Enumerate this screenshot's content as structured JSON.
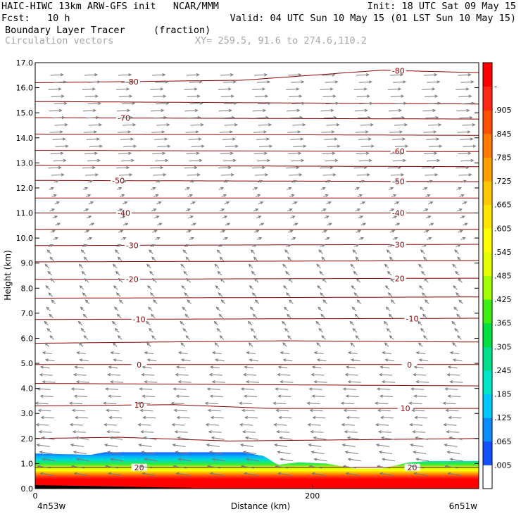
{
  "header": {
    "line1_left": "HAIC-HIWC 13km ARW-GFS init   NCAR/MMM",
    "line1_right": "Init: 18 UTC Sat 09 May 15",
    "line2_left": "Fcst:   10 h",
    "line2_right": "Valid: 04 UTC Sun 10 May 15 (01 LST Sun 10 May 15)",
    "field_name": "Boundary Layer Tracer",
    "field_units": "(fraction)",
    "vector_label": "Circulation vectors",
    "xy_label": "XY= 259.5, 91.6 to 274.6,110.2"
  },
  "chart_data": {
    "type": "heatmap",
    "title": "Boundary Layer Tracer",
    "xlabel": "Distance (km)",
    "ylabel": "Height (km)",
    "xlim": [
      0,
      320
    ],
    "ylim": [
      0,
      17
    ],
    "x_ticks": [
      0,
      200
    ],
    "x_tick_labels": [
      "0",
      "200"
    ],
    "x_end_labels": [
      "4n53w",
      "6n51w"
    ],
    "y_ticks": [
      0,
      1,
      2,
      3,
      4,
      5,
      6,
      7,
      8,
      9,
      10,
      11,
      12,
      13,
      14,
      15,
      16,
      17
    ],
    "y_tick_labels": [
      "0.0",
      "1.0",
      "2.0",
      "3.0",
      "4.0",
      "5.0",
      "6.0",
      "7.0",
      "8.0",
      "9.0",
      "10.0",
      "11.0",
      "12.0",
      "13.0",
      "14.0",
      "15.0",
      "16.0",
      "17.0"
    ],
    "colorbar": {
      "labels": [
        ".005",
        ".065",
        ".125",
        ".185",
        ".245",
        ".305",
        ".365",
        ".425",
        ".485",
        ".545",
        ".605",
        ".665",
        ".725",
        ".785",
        ".845",
        ".905",
        "-"
      ],
      "colors": [
        "#ffffff",
        "#1450ff",
        "#0a8cff",
        "#00c8ff",
        "#00e6c8",
        "#00e08c",
        "#00e040",
        "#3cf014",
        "#a0ff00",
        "#e6ff00",
        "#ffff00",
        "#ffe600",
        "#ffc800",
        "#ffa000",
        "#ff7800",
        "#ff5000",
        "#ff2814",
        "#ff0000"
      ]
    },
    "tracer_top_km": [
      [
        0,
        1.4
      ],
      [
        40,
        1.35
      ],
      [
        50,
        1.45
      ],
      [
        150,
        1.45
      ],
      [
        165,
        1.3
      ],
      [
        175,
        0.95
      ],
      [
        190,
        1.05
      ],
      [
        210,
        1.0
      ],
      [
        230,
        0.8
      ],
      [
        250,
        0.8
      ],
      [
        270,
        1.05
      ],
      [
        285,
        1.1
      ],
      [
        320,
        1.1
      ]
    ],
    "temperature_contours_C": [
      {
        "value": -80,
        "label": "-80",
        "km": [
          [
            0,
            16.2
          ],
          [
            150,
            16.3
          ],
          [
            250,
            16.7
          ],
          [
            320,
            16.6
          ]
        ],
        "label_x": [
          70,
          262
        ]
      },
      {
        "value": -75,
        "km": [
          [
            0,
            15.45
          ],
          [
            320,
            15.35
          ]
        ]
      },
      {
        "value": -70,
        "label": "-70",
        "km": [
          [
            0,
            14.8
          ],
          [
            320,
            14.75
          ]
        ],
        "label_x": [
          64
        ]
      },
      {
        "value": -65,
        "km": [
          [
            0,
            14.15
          ],
          [
            320,
            14.1
          ]
        ]
      },
      {
        "value": -60,
        "label": "-60",
        "km": [
          [
            0,
            13.5
          ],
          [
            320,
            13.45
          ]
        ],
        "label_x": [
          262
        ]
      },
      {
        "value": -55,
        "km": [
          [
            0,
            12.9
          ],
          [
            320,
            12.85
          ]
        ]
      },
      {
        "value": -50,
        "label": "-50",
        "km": [
          [
            0,
            12.3
          ],
          [
            320,
            12.25
          ]
        ],
        "label_x": [
          60,
          262
        ]
      },
      {
        "value": -45,
        "km": [
          [
            0,
            11.6
          ],
          [
            320,
            11.6
          ]
        ]
      },
      {
        "value": -40,
        "label": "-40",
        "km": [
          [
            0,
            11.0
          ],
          [
            320,
            11.0
          ]
        ],
        "label_x": [
          64,
          262
        ]
      },
      {
        "value": -35,
        "km": [
          [
            0,
            10.35
          ],
          [
            320,
            10.35
          ]
        ]
      },
      {
        "value": -30,
        "label": "-30",
        "km": [
          [
            0,
            9.7
          ],
          [
            320,
            9.75
          ]
        ],
        "label_x": [
          70,
          262
        ]
      },
      {
        "value": -25,
        "km": [
          [
            0,
            9.05
          ],
          [
            320,
            9.1
          ]
        ]
      },
      {
        "value": -20,
        "label": "-20",
        "km": [
          [
            0,
            8.35
          ],
          [
            320,
            8.4
          ]
        ],
        "label_x": [
          70,
          262
        ]
      },
      {
        "value": -15,
        "km": [
          [
            0,
            7.6
          ],
          [
            320,
            7.65
          ]
        ]
      },
      {
        "value": -10,
        "label": "-10",
        "km": [
          [
            0,
            6.75
          ],
          [
            320,
            6.8
          ]
        ],
        "label_x": [
          75,
          272
        ]
      },
      {
        "value": -5,
        "km": [
          [
            0,
            5.8
          ],
          [
            180,
            5.9
          ],
          [
            320,
            5.85
          ]
        ]
      },
      {
        "value": 0,
        "label": "0",
        "km": [
          [
            0,
            4.95
          ],
          [
            320,
            4.95
          ]
        ],
        "label_x": [
          75,
          270
        ]
      },
      {
        "value": 5,
        "km": [
          [
            0,
            4.2
          ],
          [
            320,
            4.1
          ]
        ]
      },
      {
        "value": 10,
        "label": "10",
        "km": [
          [
            0,
            3.3
          ],
          [
            100,
            3.35
          ],
          [
            170,
            3.2
          ],
          [
            320,
            3.2
          ]
        ],
        "label_x": [
          75,
          267
        ]
      },
      {
        "value": 15,
        "km": [
          [
            0,
            2.0
          ],
          [
            60,
            2.05
          ],
          [
            140,
            1.9
          ],
          [
            320,
            2.0
          ]
        ]
      },
      {
        "value": 20,
        "label": "20",
        "km": [
          [
            0,
            0.85
          ],
          [
            320,
            0.85
          ]
        ],
        "label_x": [
          75,
          272
        ]
      }
    ],
    "wind_vectors": {
      "layers": [
        {
          "km": [
            0.3,
            2.0
          ],
          "u": -1.0,
          "w": 0.15
        },
        {
          "km": [
            2.0,
            4.8
          ],
          "u": -1.0,
          "w": 0.05
        },
        {
          "km": [
            4.8,
            5.6
          ],
          "u": -0.7,
          "w": 0.1
        },
        {
          "km": [
            5.6,
            9.5
          ],
          "u": -0.3,
          "w": 0.3
        },
        {
          "km": [
            9.5,
            12.5
          ],
          "u": 0.35,
          "w": 0.15
        },
        {
          "km": [
            12.5,
            16.8
          ],
          "u": 1.0,
          "w": 0.05
        }
      ]
    }
  }
}
